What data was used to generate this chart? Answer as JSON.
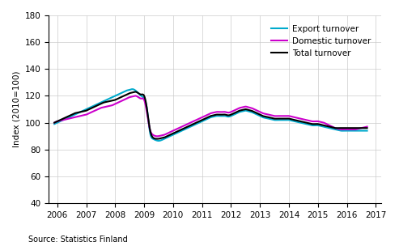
{
  "title": "",
  "ylabel": "Index (2010=100)",
  "xlabel": "",
  "source": "Source: Statistics Finland",
  "xlim": [
    2005.7,
    2017.2
  ],
  "ylim": [
    40,
    180
  ],
  "yticks": [
    40,
    60,
    80,
    100,
    120,
    140,
    160,
    180
  ],
  "xticks": [
    2006,
    2007,
    2008,
    2009,
    2010,
    2011,
    2012,
    2013,
    2014,
    2015,
    2016,
    2017
  ],
  "legend": [
    "Total turnover",
    "Domestic turnover",
    "Export turnover"
  ],
  "colors": {
    "total": "#000000",
    "domestic": "#cc00cc",
    "export": "#00aacc"
  },
  "linewidth": 1.5,
  "total_x": [
    2005.9,
    2006.0,
    2006.1,
    2006.2,
    2006.3,
    2006.4,
    2006.5,
    2006.6,
    2006.7,
    2006.8,
    2006.9,
    2007.0,
    2007.1,
    2007.2,
    2007.3,
    2007.4,
    2007.5,
    2007.6,
    2007.7,
    2007.8,
    2007.9,
    2008.0,
    2008.1,
    2008.2,
    2008.3,
    2008.4,
    2008.5,
    2008.6,
    2008.7,
    2008.8,
    2008.9,
    2009.0,
    2009.1,
    2009.2,
    2009.3,
    2009.4,
    2009.5,
    2009.6,
    2009.7,
    2009.8,
    2009.9,
    2010.0,
    2010.1,
    2010.2,
    2010.3,
    2010.4,
    2010.5,
    2010.6,
    2010.7,
    2010.8,
    2010.9,
    2011.0,
    2011.1,
    2011.2,
    2011.3,
    2011.4,
    2011.5,
    2011.6,
    2011.7,
    2011.8,
    2011.9,
    2012.0,
    2012.1,
    2012.2,
    2012.3,
    2012.4,
    2012.5,
    2012.6,
    2012.7,
    2012.8,
    2012.9,
    2013.0,
    2013.1,
    2013.2,
    2013.3,
    2013.4,
    2013.5,
    2013.6,
    2013.7,
    2013.8,
    2013.9,
    2014.0,
    2014.1,
    2014.2,
    2014.3,
    2014.4,
    2014.5,
    2014.6,
    2014.7,
    2014.8,
    2014.9,
    2015.0,
    2015.1,
    2015.2,
    2015.3,
    2015.4,
    2015.5,
    2015.6,
    2015.7,
    2015.8,
    2015.9,
    2016.0,
    2016.1,
    2016.2,
    2016.3,
    2016.4,
    2016.5,
    2016.6,
    2016.7
  ],
  "total_y": [
    100,
    101,
    102,
    103,
    104,
    105,
    106,
    107,
    107.5,
    108,
    108.5,
    109,
    110,
    111,
    112,
    113,
    114,
    115,
    115.5,
    116,
    116.5,
    117,
    118,
    119,
    120,
    121,
    122,
    122.5,
    123,
    122,
    121,
    120,
    110,
    95,
    89,
    88,
    88,
    88.5,
    89,
    90,
    91,
    92,
    93,
    94,
    95,
    96,
    97,
    98,
    99,
    100,
    101,
    102,
    103,
    104,
    105,
    105.5,
    106,
    106,
    106,
    106,
    105.5,
    106,
    107,
    108,
    109,
    109.5,
    110,
    109.5,
    109,
    108,
    107,
    106,
    105,
    104.5,
    104,
    103.5,
    103,
    103,
    103,
    103,
    103,
    103,
    102.5,
    102,
    101.5,
    101,
    100.5,
    100,
    99.5,
    99,
    99,
    99,
    98.5,
    98,
    97.5,
    97,
    96.5,
    96,
    96,
    96,
    96,
    96,
    96,
    96,
    96,
    96,
    96,
    96,
    96
  ],
  "domestic_y": [
    100,
    101,
    101.5,
    102,
    102.5,
    103,
    103.5,
    104,
    104.5,
    105,
    105.5,
    106,
    107,
    108,
    109,
    110,
    111,
    111.5,
    112,
    112.5,
    113,
    114,
    115,
    116,
    117,
    118,
    119,
    119.5,
    120,
    119,
    118,
    117,
    107,
    95,
    91,
    90,
    90,
    90.5,
    91,
    92,
    93,
    94,
    95,
    96,
    97,
    98,
    99,
    100,
    101,
    102,
    103,
    104,
    105,
    106,
    107,
    107.5,
    108,
    108,
    108,
    108,
    107.5,
    108,
    109,
    110,
    111,
    111.5,
    112,
    111.5,
    111,
    110,
    109,
    108,
    107,
    106.5,
    106,
    105.5,
    105,
    105,
    105,
    105,
    105,
    105,
    104.5,
    104,
    103.5,
    103,
    102.5,
    102,
    101.5,
    101,
    101,
    101,
    100.5,
    100,
    99,
    98,
    97,
    96,
    95.5,
    95,
    95,
    95,
    95,
    95,
    95,
    95.5,
    96,
    96.5,
    97
  ],
  "export_y": [
    99,
    100,
    101,
    102,
    103,
    104,
    105,
    106,
    107,
    108,
    109,
    110,
    111,
    112,
    113,
    114,
    115,
    116,
    117,
    118,
    119,
    120,
    121,
    122,
    123,
    124,
    124.5,
    125,
    124,
    122,
    120,
    118,
    110,
    93,
    88,
    87,
    86.5,
    87,
    88,
    89,
    90,
    91,
    92,
    93,
    94,
    95,
    96,
    97,
    98,
    99,
    100,
    101,
    102,
    103,
    104,
    104.5,
    105,
    105,
    105,
    105,
    104.5,
    105,
    106,
    107,
    108,
    108.5,
    109,
    108.5,
    108,
    107,
    106,
    105,
    104,
    103.5,
    103,
    102.5,
    102,
    102,
    102,
    102,
    102,
    102,
    101.5,
    101,
    100.5,
    100,
    99.5,
    99,
    98.5,
    98,
    98,
    98,
    97.5,
    97,
    96.5,
    96,
    95.5,
    95,
    94.5,
    94,
    94,
    94,
    94,
    94,
    94,
    94,
    94,
    94,
    94
  ]
}
